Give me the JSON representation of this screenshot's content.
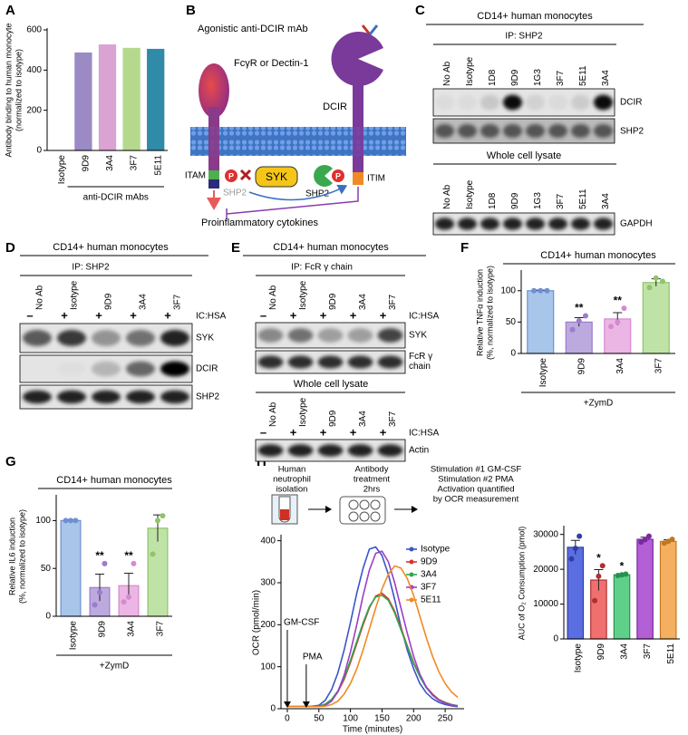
{
  "panels": [
    "A",
    "B",
    "C",
    "D",
    "E",
    "F",
    "G",
    "H"
  ],
  "chart_data": [
    {
      "type": "bar",
      "ylabel": [
        "Antibody binding to human monocyte",
        "(normalized to isotype)"
      ],
      "categories": [
        "Isotype",
        "9D9",
        "3A4",
        "3F7",
        "5E11"
      ],
      "values": [
        0,
        485,
        525,
        508,
        503
      ],
      "colors": [
        "#9b8ac4",
        "#9b8ac4",
        "#d9a3d3",
        "#b5d98c",
        "#2f8ba8"
      ],
      "ylim": [
        0,
        600
      ],
      "yticks": [
        0,
        200,
        400,
        600
      ],
      "group_label": "anti-DCIR mAbs"
    },
    {
      "type": "bar",
      "title": "CD14+ human monocytes",
      "ylabel": [
        "Relative TNFα induction",
        "(%, normalized to isotype)"
      ],
      "categories": [
        "Isotype",
        "9D9",
        "3A4",
        "3F7"
      ],
      "values": [
        100,
        50,
        55,
        113
      ],
      "errors": [
        1,
        7,
        10,
        6
      ],
      "points": [
        [
          100,
          100,
          100
        ],
        [
          38,
          52,
          60
        ],
        [
          43,
          50,
          72
        ],
        [
          105,
          120,
          115
        ]
      ],
      "colors": [
        "#a8c5ea",
        "#bcaade",
        "#ecb6e4",
        "#bfe3a6"
      ],
      "point_colors": [
        "#6f8fd0",
        "#9d7bcc",
        "#d58ad0",
        "#8fc46a"
      ],
      "annotations": [
        null,
        "**",
        "**",
        null
      ],
      "ylim": [
        0,
        130
      ],
      "yticks": [
        0,
        50,
        100
      ],
      "xlabel": "+ZymD"
    },
    {
      "type": "bar",
      "title": "CD14+ human monocytes",
      "ylabel": [
        "Relative IL6 induction",
        "(%, normalized to isotype)"
      ],
      "categories": [
        "Isotype",
        "9D9",
        "3A4",
        "3F7"
      ],
      "values": [
        100,
        30,
        32,
        92
      ],
      "errors": [
        1,
        14,
        13,
        14
      ],
      "points": [
        [
          100,
          100,
          100
        ],
        [
          12,
          25,
          55
        ],
        [
          15,
          20,
          55
        ],
        [
          65,
          100,
          105
        ]
      ],
      "colors": [
        "#a8c5ea",
        "#bcaade",
        "#ecb6e4",
        "#bfe3a6"
      ],
      "point_colors": [
        "#6f8fd0",
        "#9d7bcc",
        "#d58ad0",
        "#8fc46a"
      ],
      "annotations": [
        null,
        "**",
        "**",
        null
      ],
      "ylim": [
        0,
        125
      ],
      "yticks": [
        0,
        50,
        100
      ],
      "xlabel": "+ZymD"
    },
    {
      "type": "line",
      "xlabel": "Time (minutes)",
      "ylabel": "OCR (pmol/min)",
      "x": [
        0,
        10,
        20,
        30,
        40,
        50,
        60,
        70,
        80,
        90,
        100,
        110,
        120,
        130,
        140,
        150,
        160,
        170,
        180,
        190,
        200,
        210,
        220,
        230,
        240,
        250,
        260,
        270
      ],
      "xlim": [
        -10,
        280
      ],
      "ylim": [
        0,
        410
      ],
      "xticks": [
        0,
        50,
        100,
        150,
        200,
        250
      ],
      "yticks": [
        0,
        100,
        200,
        300,
        400
      ],
      "series": [
        {
          "name": "Isotype",
          "color": "#3a55c8",
          "values": [
            5,
            5,
            5,
            5,
            6,
            8,
            20,
            45,
            85,
            140,
            205,
            275,
            335,
            380,
            385,
            365,
            320,
            260,
            195,
            140,
            95,
            60,
            38,
            24,
            15,
            10,
            7,
            5
          ]
        },
        {
          "name": "9D9",
          "color": "#e03030",
          "values": [
            5,
            5,
            5,
            5,
            5,
            6,
            10,
            20,
            40,
            70,
            110,
            155,
            200,
            240,
            268,
            275,
            262,
            232,
            192,
            150,
            110,
            78,
            52,
            35,
            22,
            15,
            10,
            7
          ]
        },
        {
          "name": "3A4",
          "color": "#2fa84f",
          "values": [
            5,
            5,
            5,
            5,
            5,
            6,
            11,
            22,
            42,
            74,
            115,
            160,
            205,
            243,
            266,
            270,
            258,
            228,
            188,
            148,
            108,
            76,
            50,
            33,
            21,
            14,
            10,
            7
          ]
        },
        {
          "name": "3F7",
          "color": "#9b3fc4",
          "values": [
            5,
            5,
            5,
            5,
            5,
            6,
            8,
            18,
            40,
            80,
            135,
            200,
            270,
            330,
            370,
            375,
            350,
            300,
            240,
            180,
            125,
            82,
            52,
            32,
            20,
            13,
            9,
            6
          ]
        },
        {
          "name": "5E11",
          "color": "#f08a24",
          "values": [
            5,
            5,
            5,
            5,
            5,
            5,
            6,
            10,
            18,
            35,
            60,
            95,
            140,
            190,
            240,
            285,
            320,
            340,
            335,
            310,
            270,
            220,
            170,
            125,
            88,
            60,
            40,
            27
          ]
        }
      ],
      "annotations": [
        {
          "text": "GM-CSF",
          "x": 0
        },
        {
          "text": "PMA",
          "x": 30
        }
      ]
    },
    {
      "type": "bar",
      "ylabel": [
        "AUC of O₂ Consumption (pmol)"
      ],
      "categories": [
        "Isotype",
        "9D9",
        "3A4",
        "3F7",
        "5E11"
      ],
      "values": [
        26300,
        16900,
        18400,
        28600,
        28000
      ],
      "errors": [
        2000,
        3000,
        300,
        600,
        500
      ],
      "points": [
        [
          23000,
          26000,
          29500
        ],
        [
          11000,
          18000,
          21000
        ],
        [
          18200,
          18400,
          18600
        ],
        [
          27800,
          28500,
          29500
        ],
        [
          27500,
          28000,
          28600
        ]
      ],
      "colors": [
        "#5b6ee1",
        "#f07070",
        "#5fd08a",
        "#b35fd6",
        "#f4b060"
      ],
      "point_colors": [
        "#2f3fa0",
        "#b03030",
        "#2a9050",
        "#7a2aa0",
        "#c07820"
      ],
      "annotations": [
        null,
        "*",
        "*",
        null,
        null
      ],
      "ylim": [
        0,
        32000
      ],
      "yticks": [
        0,
        10000,
        20000,
        30000
      ]
    }
  ],
  "diagram_b": {
    "mab": "Agonistic anti-DCIR mAb",
    "receptor": "FcγR or Dectin-1",
    "dcir": "DCIR",
    "itam": "ITAM",
    "itim": "ITIM",
    "syk": "SYK",
    "shp2_inactive": "SHP2",
    "shp2": "SHP2",
    "phospho": "P",
    "output": "Proinflammatory cytokines"
  },
  "blot_c": {
    "title": "CD14+ human monocytes",
    "ip": "IP: SHP2",
    "lanes": [
      "No Ab",
      "Isotype",
      "1D8",
      "9D9",
      "1G3",
      "3F7",
      "5E11",
      "3A4"
    ],
    "blots": [
      "DCIR",
      "SHP2"
    ],
    "lysate": "Whole cell lysate",
    "lysate_blots": [
      "GAPDH"
    ]
  },
  "blot_d": {
    "title": "CD14+ human monocytes",
    "ip": "IP: SHP2",
    "lanes": [
      "No Ab",
      "Isotype",
      "9D9",
      "3A4",
      "3F7"
    ],
    "signs": [
      "–",
      "+",
      "+",
      "+",
      "+"
    ],
    "condition": "IC:HSA",
    "blots": [
      "SYK",
      "DCIR",
      "SHP2"
    ]
  },
  "blot_e": {
    "title": "CD14+ human monocytes",
    "ip": "IP: FcR γ chain",
    "lanes": [
      "No Ab",
      "Isotype",
      "9D9",
      "3A4",
      "3F7"
    ],
    "signs": [
      "–",
      "+",
      "+",
      "+",
      "+"
    ],
    "condition": "IC:HSA",
    "blots": [
      "SYK",
      [
        "FcR γ",
        "chain"
      ]
    ],
    "lysate": "Whole cell lysate",
    "lysate_blots": [
      "Actin"
    ]
  },
  "workflow_h": [
    [
      "Human",
      "neutrophil",
      "isolation"
    ],
    [
      "Antibody",
      "treatment",
      "2hrs"
    ],
    [
      "Stimulation #1 GM-CSF",
      "Stimulation #2 PMA",
      "Activation quantified",
      "by OCR measurement"
    ]
  ]
}
